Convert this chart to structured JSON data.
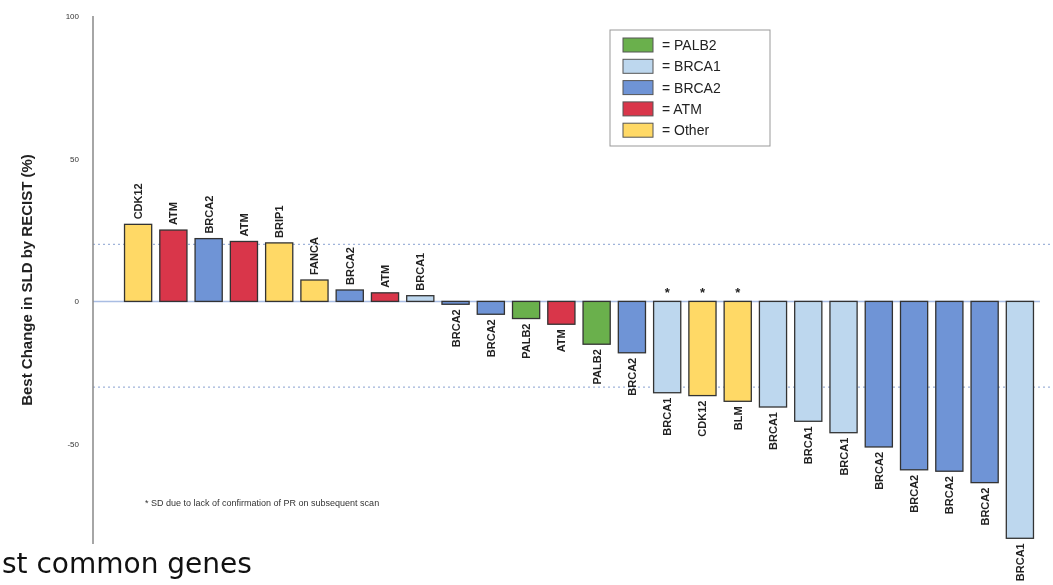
{
  "chart_data": {
    "type": "bar",
    "stacked": true,
    "ylabel": "Best Change in SLD by RECIST (%)",
    "categories": [
      "CDK12",
      "ATM",
      "BRCA2",
      "ATM",
      "BRIP1",
      "FANCA",
      "BRCA2",
      "ATM",
      "BRCA1",
      "BRCA2",
      "BRCA2",
      "PALB2",
      "ATM",
      "PALB2",
      "BRCA2",
      "BRCA1",
      "CDK12",
      "BLM",
      "BRCA1",
      "BRCA1",
      "BRCA1",
      "BRCA2",
      "BRCA2",
      "BRCA2",
      "BRCA2",
      "BRCA1"
    ],
    "series": [
      {
        "name": "= PALB2",
        "color": "#6ab04c",
        "values": [
          null,
          null,
          null,
          null,
          null,
          null,
          null,
          null,
          null,
          null,
          null,
          -6,
          null,
          -15,
          null,
          null,
          null,
          null,
          null,
          null,
          null,
          null,
          null,
          null,
          null,
          null
        ]
      },
      {
        "name": "= BRCA1",
        "color": "#bdd7ee",
        "values": [
          null,
          null,
          null,
          null,
          null,
          null,
          null,
          null,
          2,
          null,
          null,
          null,
          null,
          null,
          null,
          -32,
          null,
          null,
          -37,
          -42,
          -46,
          null,
          null,
          null,
          null,
          -83
        ]
      },
      {
        "name": "= BRCA2",
        "color": "#6f94d6",
        "values": [
          null,
          null,
          22,
          null,
          null,
          null,
          4,
          null,
          null,
          -1,
          -4.5,
          null,
          null,
          null,
          -18,
          null,
          null,
          null,
          null,
          null,
          null,
          -51,
          -59,
          -59.5,
          -63.5,
          null
        ]
      },
      {
        "name": "= ATM",
        "color": "#d9364a",
        "values": [
          null,
          25,
          null,
          21,
          null,
          null,
          null,
          3,
          null,
          null,
          null,
          null,
          -8,
          null,
          null,
          null,
          null,
          null,
          null,
          null,
          null,
          null,
          null,
          null,
          null,
          null
        ]
      },
      {
        "name": "= Other",
        "color": "#ffd966",
        "values": [
          27,
          null,
          null,
          null,
          20.5,
          7.5,
          null,
          null,
          null,
          null,
          null,
          null,
          null,
          null,
          null,
          null,
          -33,
          -35,
          null,
          null,
          null,
          null,
          null,
          null,
          null,
          null
        ]
      }
    ],
    "value_labels": [
      null,
      null,
      null,
      null,
      null,
      null,
      null,
      null,
      null,
      null,
      null,
      null,
      null,
      null,
      null,
      "*",
      "*",
      "*",
      null,
      null,
      null,
      null,
      null,
      null,
      null,
      null
    ],
    "ylim": [
      -85,
      100
    ],
    "yticks": [
      100,
      50,
      0,
      -50
    ],
    "grid": false,
    "legend": "top",
    "ref_lines": [
      {
        "axis": "y",
        "value": 20,
        "color": "#9fb3d9",
        "line_style": "dotted"
      },
      {
        "axis": "y",
        "value": -30,
        "color": "#9fb3d9",
        "line_style": "dotted"
      }
    ],
    "annotations": [
      "* SD due to lack of confirmation of PR on subsequent scan",
      "st common genes"
    ]
  }
}
